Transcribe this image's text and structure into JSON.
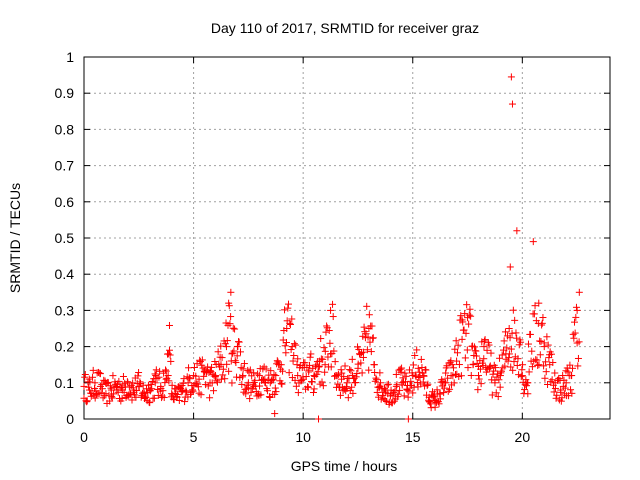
{
  "chart_data": {
    "type": "scatter",
    "title": "Day 110 of 2017, SRMTID for receiver graz",
    "xlabel": "GPS time / hours",
    "ylabel": "SRMTID / TECUs",
    "xlim": [
      0,
      24
    ],
    "ylim": [
      0,
      1
    ],
    "x_ticks": [
      0,
      5,
      10,
      15,
      20
    ],
    "x_tick_labels": [
      "0",
      "5",
      "10",
      "15",
      "20"
    ],
    "y_ticks": [
      0,
      0.1,
      0.2,
      0.3,
      0.4,
      0.5,
      0.6,
      0.7,
      0.8,
      0.9,
      1
    ],
    "y_tick_labels": [
      "0",
      "0.1",
      "0.2",
      "0.3",
      "0.4",
      "0.5",
      "0.6",
      "0.7",
      "0.8",
      "0.9",
      "1"
    ],
    "grid": true,
    "marker": "+",
    "color": "#ff0000",
    "series": [
      {
        "name": "SRMTID",
        "x": [
          0.0,
          0.25,
          0.5,
          0.75,
          1.0,
          1.25,
          1.5,
          1.75,
          2.0,
          2.25,
          2.5,
          2.75,
          3.0,
          3.25,
          3.5,
          3.75,
          3.85,
          3.9,
          4.0,
          4.25,
          4.5,
          4.75,
          5.0,
          5.25,
          5.5,
          5.75,
          6.0,
          6.25,
          6.5,
          6.6,
          6.7,
          6.75,
          7.0,
          7.25,
          7.5,
          7.75,
          8.0,
          8.25,
          8.5,
          8.75,
          9.0,
          9.25,
          9.5,
          9.75,
          10.0,
          10.25,
          10.5,
          10.75,
          11.0,
          11.25,
          11.5,
          11.75,
          12.0,
          12.25,
          12.5,
          12.75,
          13.0,
          13.25,
          13.5,
          13.75,
          14.0,
          14.25,
          14.5,
          14.75,
          15.0,
          15.25,
          15.5,
          15.75,
          16.0,
          16.25,
          16.5,
          16.75,
          17.0,
          17.25,
          17.5,
          17.75,
          18.0,
          18.25,
          18.5,
          18.75,
          19.0,
          19.25,
          19.4,
          19.45,
          19.5,
          19.55,
          19.75,
          20.0,
          20.25,
          20.5,
          20.75,
          21.0,
          21.25,
          21.5,
          21.75,
          22.0,
          22.25,
          22.5,
          22.6,
          8.7,
          10.7,
          14.8
        ],
        "y": [
          0.09,
          0.08,
          0.1,
          0.09,
          0.07,
          0.08,
          0.09,
          0.08,
          0.1,
          0.08,
          0.09,
          0.07,
          0.08,
          0.1,
          0.09,
          0.11,
          0.18,
          0.19,
          0.07,
          0.06,
          0.08,
          0.1,
          0.12,
          0.11,
          0.13,
          0.1,
          0.12,
          0.15,
          0.2,
          0.32,
          0.35,
          0.18,
          0.2,
          0.12,
          0.1,
          0.09,
          0.12,
          0.11,
          0.1,
          0.12,
          0.15,
          0.25,
          0.2,
          0.12,
          0.11,
          0.13,
          0.12,
          0.16,
          0.15,
          0.3,
          0.12,
          0.11,
          0.1,
          0.12,
          0.14,
          0.17,
          0.25,
          0.15,
          0.09,
          0.08,
          0.07,
          0.09,
          0.1,
          0.08,
          0.12,
          0.14,
          0.12,
          0.06,
          0.05,
          0.07,
          0.1,
          0.12,
          0.16,
          0.22,
          0.28,
          0.15,
          0.12,
          0.2,
          0.14,
          0.1,
          0.12,
          0.18,
          0.25,
          0.42,
          0.945,
          0.87,
          0.52,
          0.12,
          0.1,
          0.49,
          0.32,
          0.2,
          0.15,
          0.1,
          0.08,
          0.1,
          0.12,
          0.3,
          0.35,
          0.015,
          0.0,
          0.0
        ]
      }
    ]
  }
}
